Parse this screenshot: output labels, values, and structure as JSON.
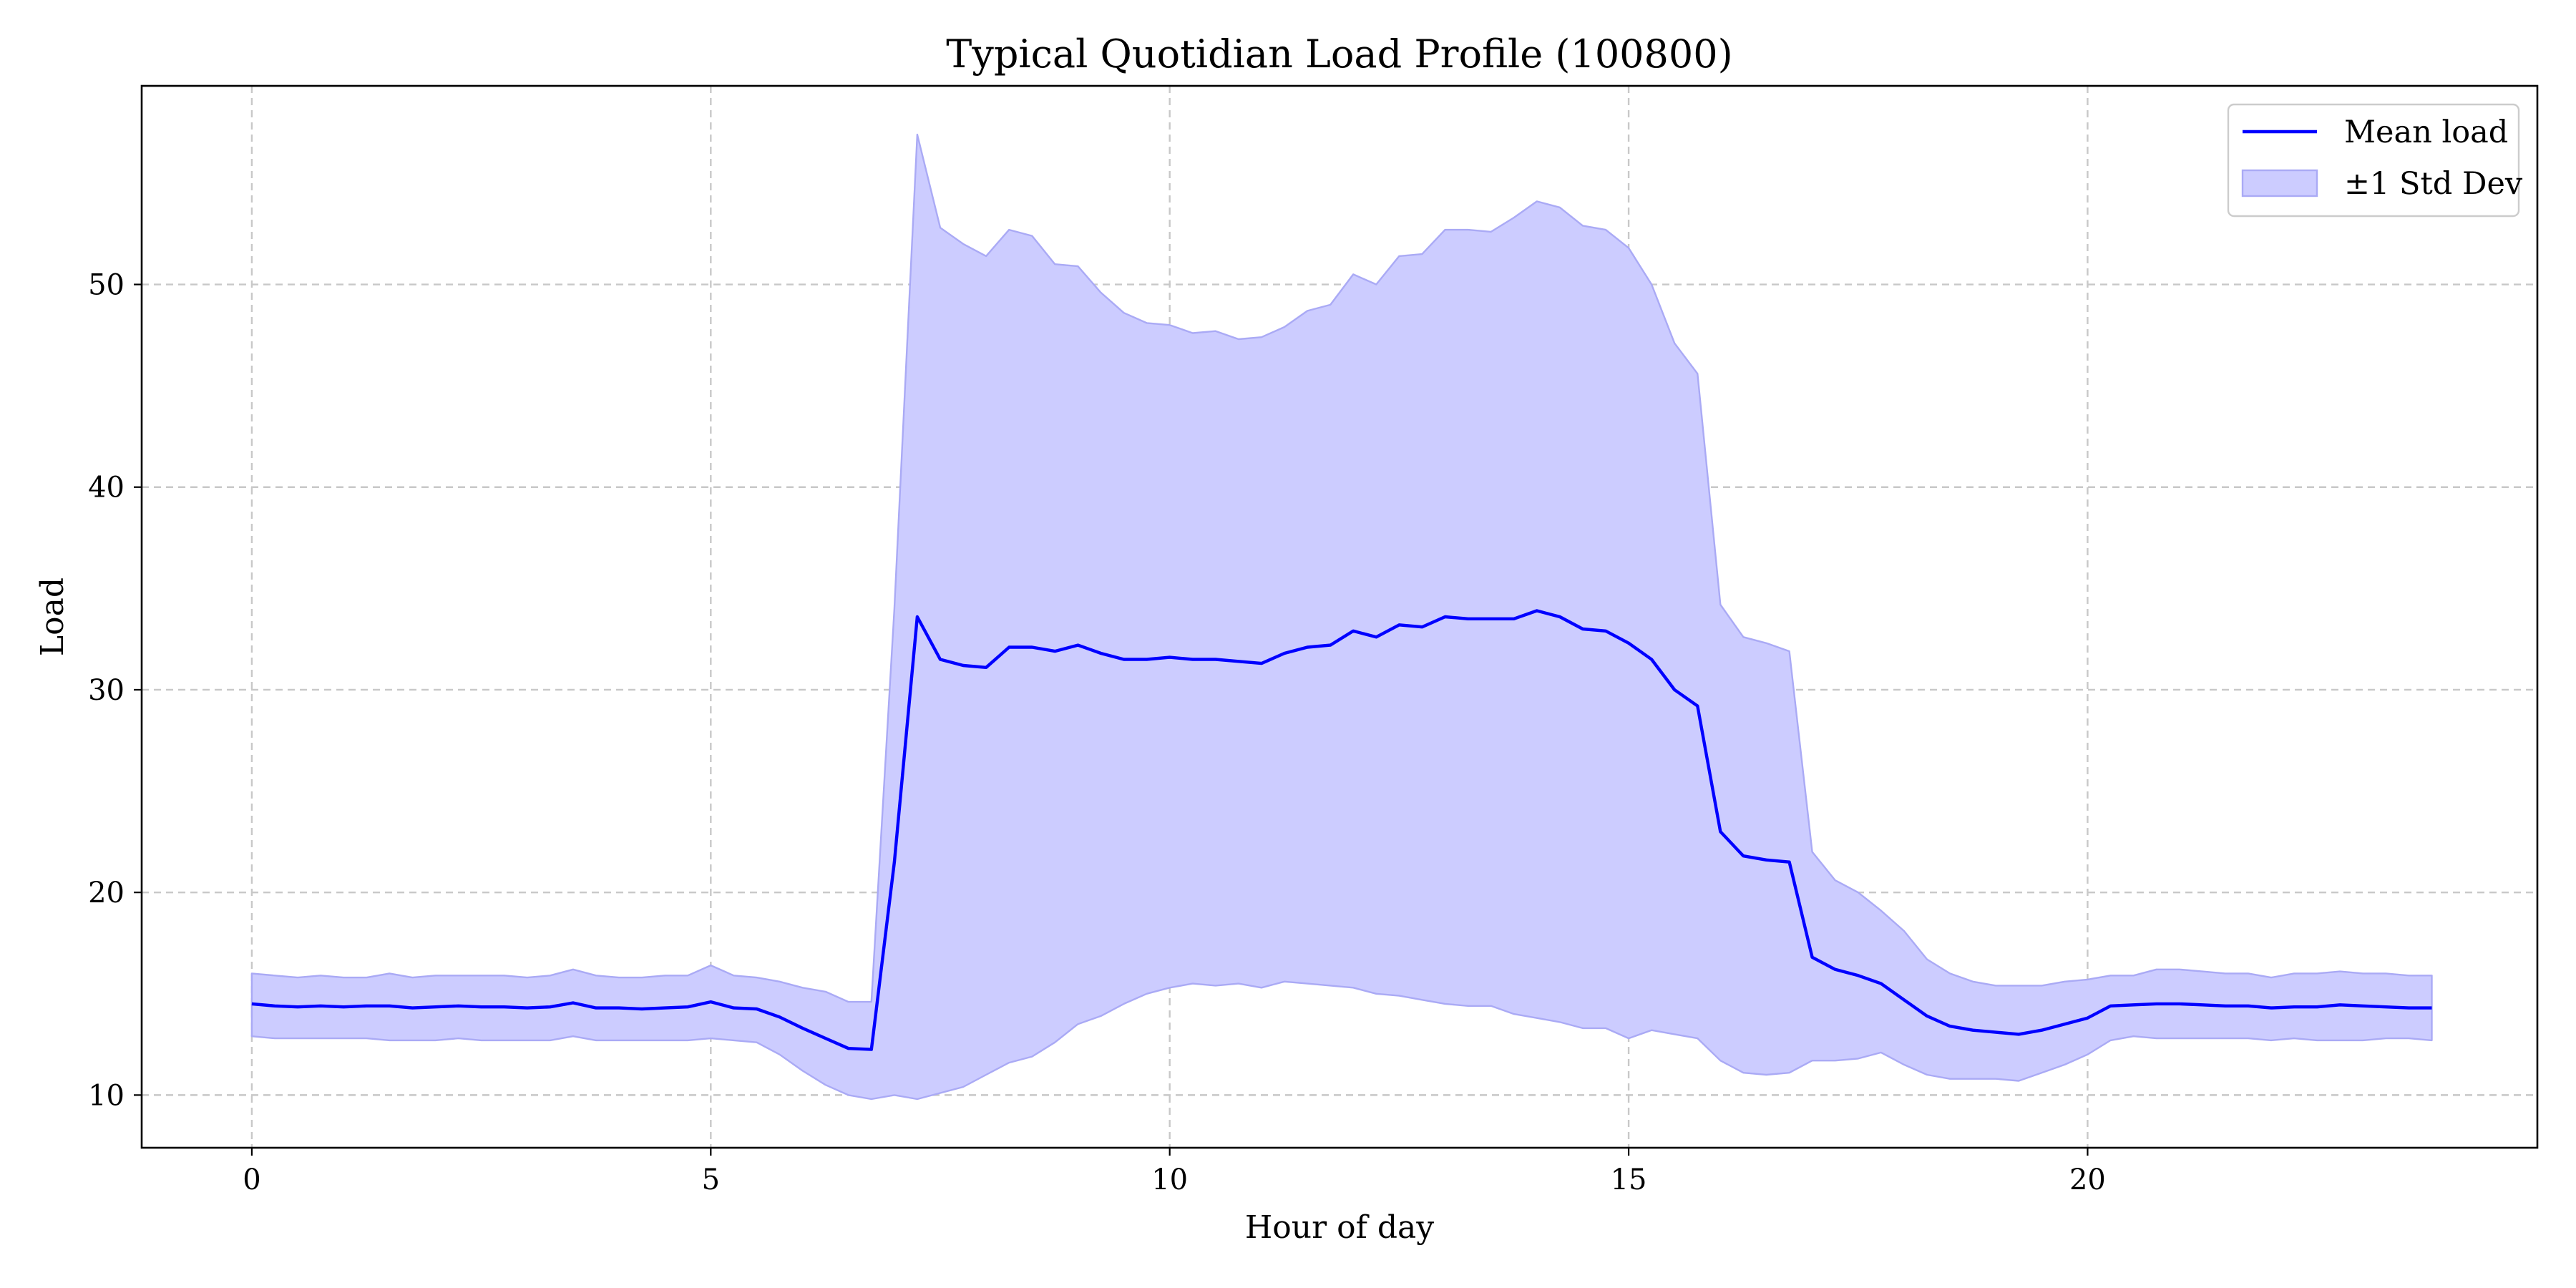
{
  "chart_data": {
    "type": "line",
    "title": "Typical Quotidian Load Profile (100800)",
    "xlabel": "Hour of day",
    "ylabel": "Load",
    "xlim": [
      -1.2,
      24.9
    ],
    "ylim": [
      7.4,
      59.8
    ],
    "xticks": [
      0,
      5,
      10,
      15,
      20
    ],
    "yticks": [
      10,
      20,
      30,
      40,
      50
    ],
    "grid": true,
    "legend_position": "top-right",
    "colors": {
      "mean_line": "#0000ff",
      "band_fill": "#ccccff",
      "band_edge": "#aaaaf5"
    },
    "legend": [
      {
        "label": "Mean load",
        "kind": "line"
      },
      {
        "label": "±1 Std Dev",
        "kind": "patch"
      }
    ],
    "x": [
      0,
      0.25,
      0.5,
      0.75,
      1,
      1.25,
      1.5,
      1.75,
      2,
      2.25,
      2.5,
      2.75,
      3,
      3.25,
      3.5,
      3.75,
      4,
      4.25,
      4.5,
      4.75,
      5,
      5.25,
      5.5,
      5.75,
      6,
      6.25,
      6.5,
      6.75,
      7,
      7.25,
      7.5,
      7.75,
      8,
      8.25,
      8.5,
      8.75,
      9,
      9.25,
      9.5,
      9.75,
      10,
      10.25,
      10.5,
      10.75,
      11,
      11.25,
      11.5,
      11.75,
      12,
      12.25,
      12.5,
      12.75,
      13,
      13.25,
      13.5,
      13.75,
      14,
      14.25,
      14.5,
      14.75,
      15,
      15.25,
      15.5,
      15.75,
      16,
      16.25,
      16.5,
      16.75,
      17,
      17.25,
      17.5,
      17.75,
      18,
      18.25,
      18.5,
      18.75,
      19,
      19.25,
      19.5,
      19.75,
      20,
      20.25,
      20.5,
      20.75,
      21,
      21.25,
      21.5,
      21.75,
      22,
      22.25,
      22.5,
      22.75,
      23,
      23.25,
      23.5,
      23.75
    ],
    "series": [
      {
        "name": "Mean load",
        "values": [
          14.5,
          14.4,
          14.35,
          14.4,
          14.35,
          14.4,
          14.4,
          14.3,
          14.35,
          14.4,
          14.35,
          14.35,
          14.3,
          14.35,
          14.55,
          14.3,
          14.3,
          14.25,
          14.3,
          14.35,
          14.6,
          14.3,
          14.25,
          13.85,
          13.3,
          12.8,
          12.3,
          12.25,
          21.5,
          33.6,
          31.5,
          31.2,
          31.1,
          32.1,
          32.1,
          31.9,
          32.2,
          31.8,
          31.5,
          31.5,
          31.6,
          31.5,
          31.5,
          31.4,
          31.3,
          31.8,
          32.1,
          32.2,
          32.9,
          32.6,
          33.2,
          33.1,
          33.6,
          33.5,
          33.5,
          33.5,
          33.9,
          33.6,
          33.0,
          32.9,
          32.3,
          31.5,
          30.0,
          29.2,
          23.0,
          21.8,
          21.6,
          21.5,
          16.8,
          16.2,
          15.9,
          15.5,
          14.7,
          13.9,
          13.4,
          13.2,
          13.1,
          13.0,
          13.2,
          13.5,
          13.8,
          14.4,
          14.45,
          14.5,
          14.5,
          14.45,
          14.4,
          14.4,
          14.3,
          14.35,
          14.35,
          14.45,
          14.4,
          14.35,
          14.3,
          14.3
        ]
      },
      {
        "name": "±1 Std Dev",
        "upper": [
          16.0,
          15.9,
          15.8,
          15.9,
          15.8,
          15.8,
          16.0,
          15.8,
          15.9,
          15.9,
          15.9,
          15.9,
          15.8,
          15.9,
          16.2,
          15.9,
          15.8,
          15.8,
          15.9,
          15.9,
          16.4,
          15.9,
          15.8,
          15.6,
          15.3,
          15.1,
          14.6,
          14.6,
          34.0,
          57.4,
          52.8,
          52.0,
          51.4,
          52.7,
          52.4,
          51.0,
          50.9,
          49.6,
          48.6,
          48.1,
          48.0,
          47.6,
          47.7,
          47.3,
          47.4,
          47.9,
          48.7,
          49.0,
          50.5,
          50.0,
          51.4,
          51.5,
          52.7,
          52.7,
          52.6,
          53.3,
          54.1,
          53.8,
          52.9,
          52.7,
          51.8,
          50.0,
          47.1,
          45.6,
          34.2,
          32.6,
          32.3,
          31.9,
          22.0,
          20.6,
          20.0,
          19.1,
          18.1,
          16.7,
          16.0,
          15.6,
          15.4,
          15.4,
          15.4,
          15.6,
          15.7,
          15.9,
          15.9,
          16.2,
          16.2,
          16.1,
          16.0,
          16.0,
          15.8,
          16.0,
          16.0,
          16.1,
          16.0,
          16.0,
          15.9,
          15.9
        ],
        "lower": [
          12.9,
          12.8,
          12.8,
          12.8,
          12.8,
          12.8,
          12.7,
          12.7,
          12.7,
          12.8,
          12.7,
          12.7,
          12.7,
          12.7,
          12.9,
          12.7,
          12.7,
          12.7,
          12.7,
          12.7,
          12.8,
          12.7,
          12.6,
          12.0,
          11.2,
          10.5,
          10.0,
          9.8,
          10.0,
          9.8,
          10.1,
          10.4,
          11.0,
          11.6,
          11.9,
          12.6,
          13.5,
          13.9,
          14.5,
          15.0,
          15.3,
          15.5,
          15.4,
          15.5,
          15.3,
          15.6,
          15.5,
          15.4,
          15.3,
          15.0,
          14.9,
          14.7,
          14.5,
          14.4,
          14.4,
          14.0,
          13.8,
          13.6,
          13.3,
          13.3,
          12.8,
          13.2,
          13.0,
          12.8,
          11.7,
          11.1,
          11.0,
          11.1,
          11.7,
          11.7,
          11.8,
          12.1,
          11.5,
          11.0,
          10.8,
          10.8,
          10.8,
          10.7,
          11.1,
          11.5,
          12.0,
          12.7,
          12.9,
          12.8,
          12.8,
          12.8,
          12.8,
          12.8,
          12.7,
          12.8,
          12.7,
          12.7,
          12.7,
          12.8,
          12.8,
          12.7
        ]
      }
    ]
  }
}
